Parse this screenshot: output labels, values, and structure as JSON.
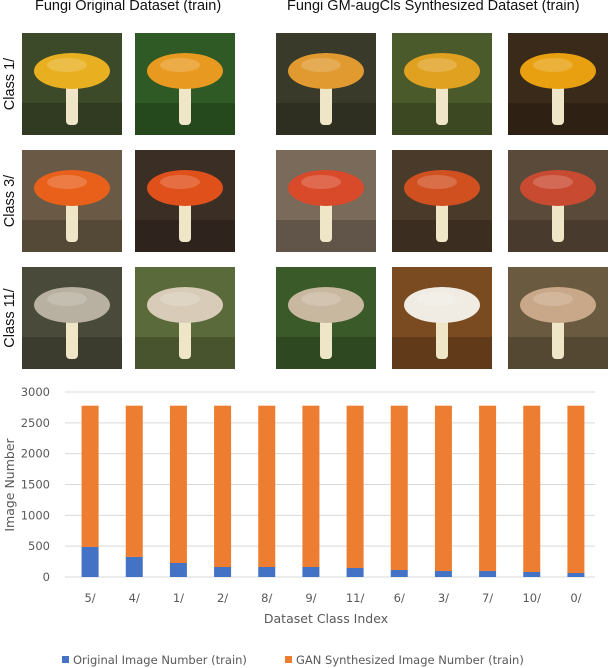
{
  "figure": {
    "left_title": "Fungi Original Dataset (train)",
    "right_title": "Fungi GM-augCls Synthesized Dataset (train)",
    "rows": [
      {
        "label": "Class 1/"
      },
      {
        "label": "Class 3/"
      },
      {
        "label": "Class 11/"
      }
    ]
  },
  "chart_data": {
    "type": "bar",
    "stacked": true,
    "categories": [
      "5/",
      "4/",
      "1/",
      "2/",
      "8/",
      "9/",
      "11/",
      "6/",
      "3/",
      "7/",
      "10/",
      "0/"
    ],
    "series": [
      {
        "name": "Original Image Number (train)",
        "color": "#4472C4",
        "values": [
          487,
          325,
          227,
          162,
          162,
          162,
          146,
          114,
          97,
          97,
          81,
          65
        ]
      },
      {
        "name": "GAN Synthesized Image Number (train)",
        "color": "#ED7D31",
        "values": [
          2291,
          2453,
          2551,
          2616,
          2616,
          2616,
          2632,
          2664,
          2681,
          2681,
          2697,
          2713
        ]
      }
    ],
    "xlabel": "Dataset Class Index",
    "ylabel": "Image Number",
    "ylim": [
      0,
      3000
    ],
    "yticks": [
      "0",
      "500",
      "1000",
      "1500",
      "2000",
      "2500",
      "3000"
    ],
    "grid": true,
    "legend": "bottom"
  }
}
